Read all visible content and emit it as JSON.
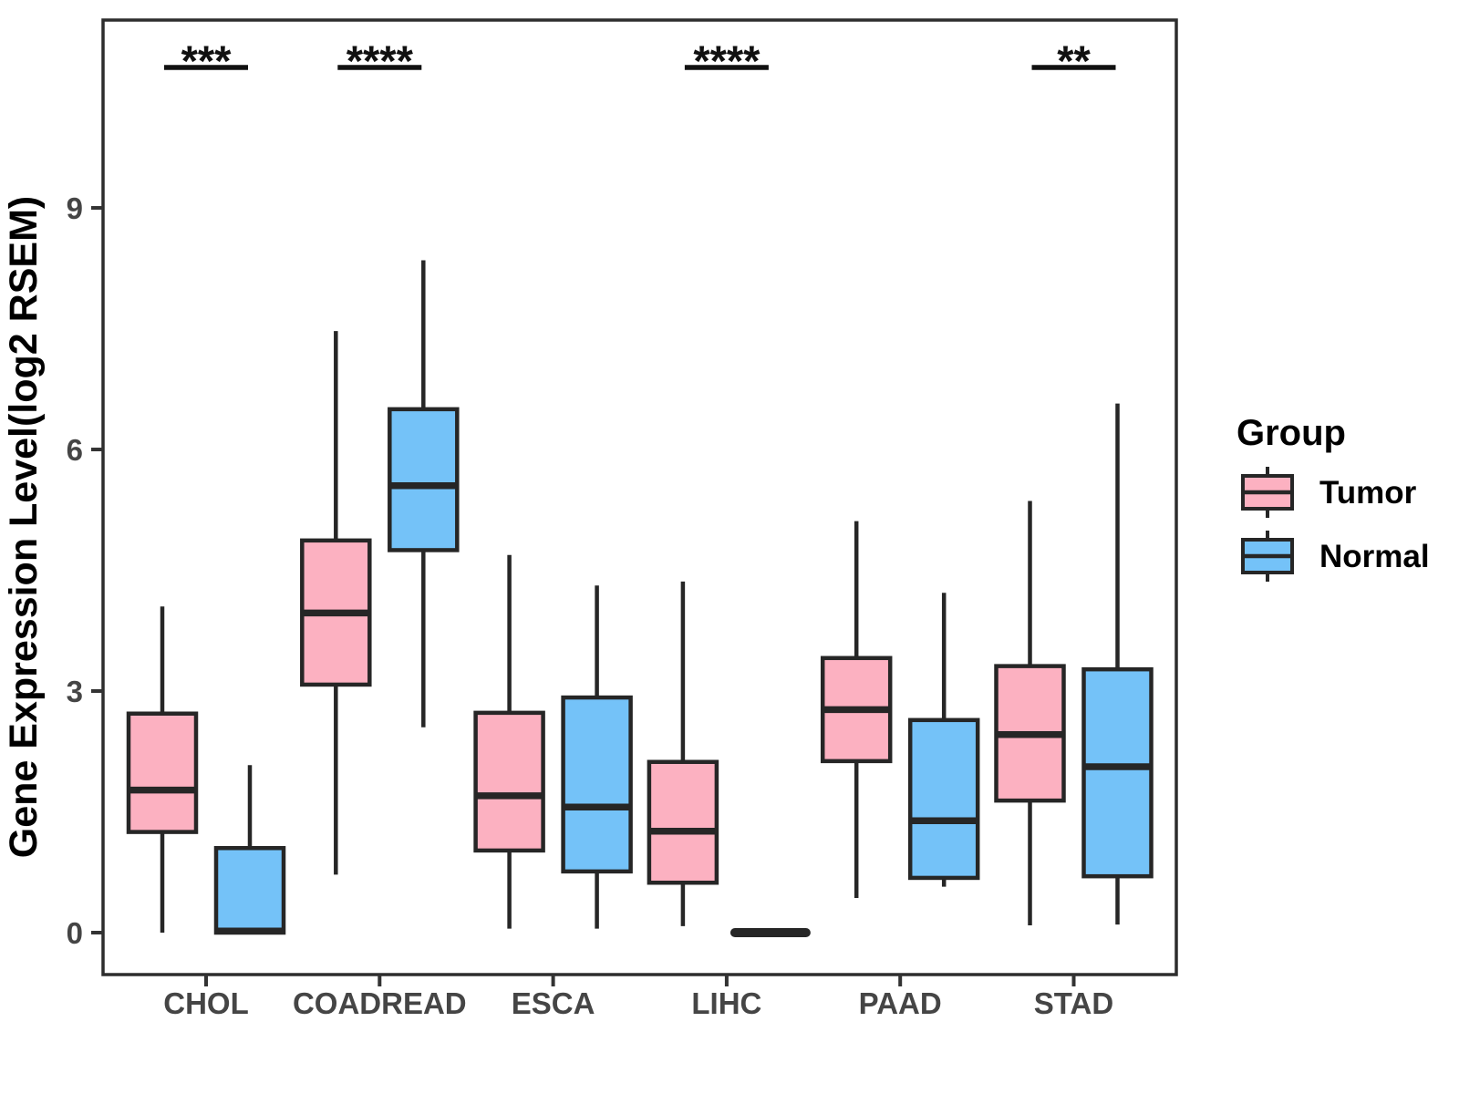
{
  "chart_data": {
    "type": "boxplot",
    "title": "",
    "xlabel": "",
    "ylabel": "Gene Expression Level(log2 RSEM)",
    "ylim": [
      -0.5,
      11.3
    ],
    "yticks": [
      0,
      3,
      6,
      9
    ],
    "grid": false,
    "panel_border": true,
    "categories": [
      "CHOL",
      "COADREAD",
      "ESCA",
      "LIHC",
      "PAAD",
      "STAD"
    ],
    "legend": {
      "title": "Group",
      "position": "right",
      "entries": [
        {
          "label": "Tumor",
          "color": "#FCB1C1"
        },
        {
          "label": "Normal",
          "color": "#74C2F8"
        }
      ]
    },
    "style": {
      "tumor_fill": "#FCB1C1",
      "normal_fill": "#74C2F8",
      "box_stroke": "#262626",
      "tick_color": "#333333",
      "tick_label_color": "#454545",
      "text_color": "#000000",
      "sig_color": "#111111"
    },
    "series": [
      {
        "name": "Tumor",
        "fill": "#FCB1C1",
        "boxes": [
          {
            "low": 0.0,
            "q1": 1.25,
            "median": 1.77,
            "q3": 2.72,
            "high": 4.05
          },
          {
            "low": 0.72,
            "q1": 3.08,
            "median": 3.97,
            "q3": 4.87,
            "high": 7.47
          },
          {
            "low": 0.05,
            "q1": 1.02,
            "median": 1.7,
            "q3": 2.73,
            "high": 4.69
          },
          {
            "low": 0.08,
            "q1": 0.62,
            "median": 1.26,
            "q3": 2.12,
            "high": 4.36
          },
          {
            "low": 0.43,
            "q1": 2.13,
            "median": 2.77,
            "q3": 3.41,
            "high": 5.11
          },
          {
            "low": 0.09,
            "q1": 1.64,
            "median": 2.46,
            "q3": 3.31,
            "high": 5.36
          }
        ]
      },
      {
        "name": "Normal",
        "fill": "#74C2F8",
        "boxes": [
          {
            "low": 0.0,
            "q1": 0.0,
            "median": 0.02,
            "q3": 1.05,
            "high": 2.08
          },
          {
            "low": 2.55,
            "q1": 4.75,
            "median": 5.55,
            "q3": 6.5,
            "high": 8.35
          },
          {
            "low": 0.05,
            "q1": 0.76,
            "median": 1.56,
            "q3": 2.92,
            "high": 4.31
          },
          {
            "low": 0.0,
            "q1": 0.0,
            "median": 0.0,
            "q3": 0.0,
            "high": 0.0
          },
          {
            "low": 0.57,
            "q1": 0.68,
            "median": 1.39,
            "q3": 2.64,
            "high": 4.22
          },
          {
            "low": 0.1,
            "q1": 0.7,
            "median": 2.06,
            "q3": 3.27,
            "high": 6.57
          }
        ]
      }
    ],
    "annotations": [
      {
        "category": "CHOL",
        "text": "***"
      },
      {
        "category": "COADREAD",
        "text": "****"
      },
      {
        "category": "LIHC",
        "text": "****"
      },
      {
        "category": "STAD",
        "text": "**"
      }
    ]
  }
}
